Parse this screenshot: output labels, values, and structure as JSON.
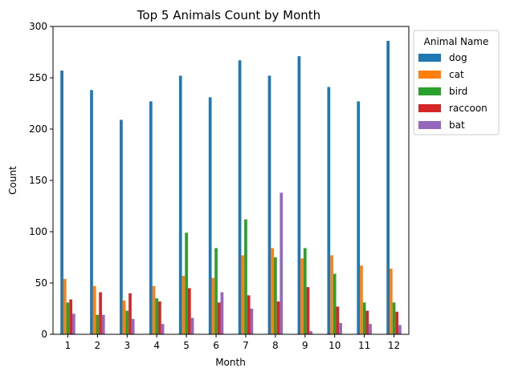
{
  "chart_data": {
    "type": "bar",
    "title": "Top 5 Animals Count by Month",
    "xlabel": "Month",
    "ylabel": "Count",
    "categories": [
      "1",
      "2",
      "3",
      "4",
      "5",
      "6",
      "7",
      "8",
      "9",
      "10",
      "11",
      "12"
    ],
    "ylim": [
      0,
      300
    ],
    "yticks": [
      0,
      50,
      100,
      150,
      200,
      250,
      300
    ],
    "legend": {
      "title": "Animal Name",
      "placement": "outside-top-right"
    },
    "series": [
      {
        "name": "dog",
        "color": "#1f77b4",
        "values": [
          257,
          238,
          209,
          227,
          252,
          231,
          267,
          252,
          271,
          241,
          227,
          286
        ]
      },
      {
        "name": "cat",
        "color": "#ff7f0e",
        "values": [
          54,
          47,
          33,
          47,
          57,
          55,
          77,
          84,
          74,
          77,
          67,
          64
        ]
      },
      {
        "name": "bird",
        "color": "#2ca02c",
        "values": [
          31,
          19,
          23,
          35,
          99,
          84,
          112,
          75,
          84,
          59,
          31,
          31
        ]
      },
      {
        "name": "raccoon",
        "color": "#d62728",
        "values": [
          34,
          41,
          40,
          32,
          45,
          31,
          38,
          32,
          46,
          27,
          23,
          22
        ]
      },
      {
        "name": "bat",
        "color": "#9467bd",
        "values": [
          20,
          19,
          15,
          10,
          16,
          41,
          25,
          138,
          3,
          11,
          10,
          9
        ]
      }
    ]
  }
}
